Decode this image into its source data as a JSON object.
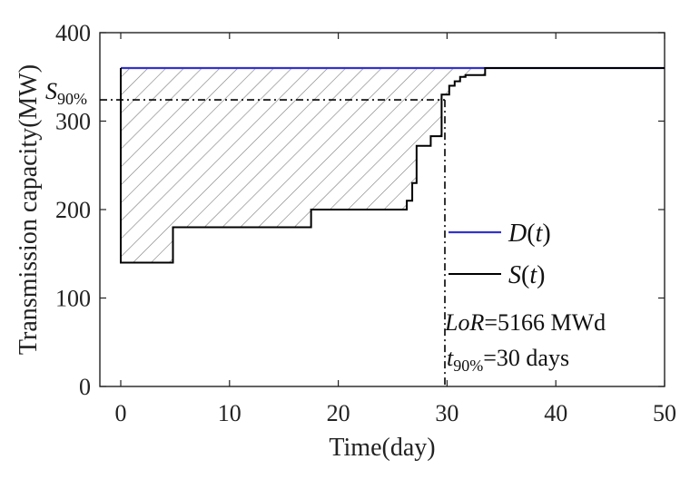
{
  "chart_data": {
    "type": "line",
    "xlabel": "Time(day)",
    "ylabel": "Transmission capacity(MW)",
    "xlim": [
      0,
      50
    ],
    "ylim": [
      0,
      400
    ],
    "xticks": [
      "0",
      "10",
      "20",
      "30",
      "40",
      "50"
    ],
    "yticks": [
      "0",
      "100",
      "200",
      "300",
      "400"
    ],
    "grid": false,
    "legend_placement": "right",
    "series": [
      {
        "name_parts": [
          "D",
          "(",
          "t",
          ")"
        ],
        "color": "#3333cc",
        "x": [
          0,
          50
        ],
        "y": [
          360,
          360
        ]
      },
      {
        "name_parts": [
          "S",
          "(",
          "t",
          ")"
        ],
        "color": "#000000",
        "step_x": [
          0,
          0,
          4.8,
          4.8,
          17.5,
          17.5,
          26.3,
          26.3,
          26.8,
          26.8,
          27.2,
          27.2,
          28.5,
          28.5,
          29.5,
          29.5,
          30.2,
          30.2,
          30.7,
          30.7,
          31.2,
          31.2,
          31.7,
          31.7,
          33.5,
          33.5,
          50
        ],
        "step_y": [
          360,
          140,
          140,
          180,
          180,
          200,
          200,
          210,
          210,
          230,
          230,
          272,
          272,
          283,
          283,
          330,
          330,
          340,
          340,
          345,
          345,
          350,
          350,
          352,
          352,
          360,
          360
        ]
      }
    ],
    "reference": {
      "s90_value": 324,
      "t90_value": 29.8,
      "s90_label_main": "S",
      "s90_label_sub": "90%"
    },
    "annotations": {
      "lor_italic": "LoR",
      "lor_rest": "=5166 MWd",
      "t90_main": "t",
      "t90_sub": "90%",
      "t90_rest": "=30 days"
    },
    "colors": {
      "demand": "#3333cc",
      "supply": "#000000",
      "hatch": "#7a7a7a"
    }
  }
}
